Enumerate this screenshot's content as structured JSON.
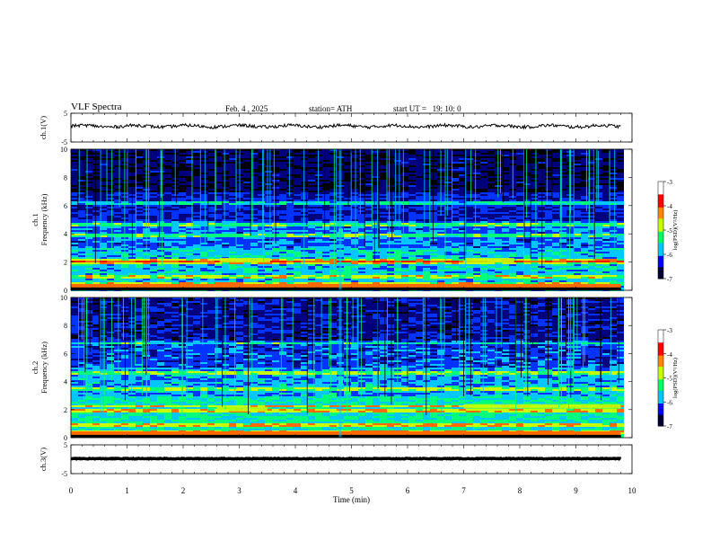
{
  "header": {
    "title": "VLF Spectra",
    "date": "Feb. 4 , 2025",
    "station": "station= ATH",
    "start_ut": "start UT =   19: 10: 0"
  },
  "colors": {
    "spectrogram_ramp": [
      "#000000",
      "#00007f",
      "#0033ff",
      "#00c8ff",
      "#00ff7a",
      "#c8ff00",
      "#ff6a00",
      "#ff0000",
      "#ffffff"
    ]
  },
  "chart_data": [
    {
      "type": "line",
      "name": "ch1-waveform",
      "ylabel": "ch.1(V)",
      "ylim": [
        -5,
        5
      ],
      "yticks": [
        "5",
        "-5"
      ],
      "x_range_min": [
        0,
        9.8
      ],
      "approx_level_v": 0.5,
      "grid": false
    },
    {
      "type": "heatmap",
      "name": "ch1-spectrogram",
      "ylabel": "ch.1\nFrequency (kHz)",
      "ylim": [
        0,
        10
      ],
      "yticks": [
        "0",
        "2",
        "4",
        "6",
        "8",
        "10"
      ],
      "data_x_range_min": [
        0,
        9.8
      ],
      "bands_khz": [
        0.5,
        1.0,
        2.0,
        2.2,
        4.0,
        4.7,
        6.2
      ],
      "strong_segments": [
        {
          "x": [
            2.65,
            3.55
          ],
          "f_khz": 2.1
        },
        {
          "x": [
            7.0,
            7.9
          ],
          "f_khz": 2.1
        }
      ],
      "burst": {
        "x": 4.8,
        "f_khz": 4.0
      },
      "colorbar": {
        "label": "log(PSD)(V²/Hz)",
        "range": [
          -7,
          -3
        ],
        "ticks": [
          "-3",
          "-4",
          "-5",
          "-6",
          "-7"
        ]
      }
    },
    {
      "type": "heatmap",
      "name": "ch2-spectrogram",
      "ylabel": "ch.2\nFrequency (kHz)",
      "ylim": [
        0,
        10
      ],
      "yticks": [
        "0",
        "2",
        "4",
        "6",
        "8",
        "10"
      ],
      "data_x_range_min": [
        0,
        9.8
      ],
      "bands_khz": [
        0.5,
        1.0,
        2.0,
        2.3,
        3.5,
        4.7,
        6.8
      ],
      "strong_segments": [
        {
          "x": [
            2.6,
            3.5
          ],
          "f_khz": 2.0
        },
        {
          "x": [
            7.0,
            9.8
          ],
          "f_khz": 2.2
        }
      ],
      "burst": {
        "x": 4.8,
        "f_khz": 4.0
      },
      "colorbar": {
        "label": "log(PSD)(V²/Hz)",
        "range": [
          -7,
          -3
        ],
        "ticks": [
          "-3",
          "-4",
          "-5",
          "-6",
          "-7"
        ]
      }
    },
    {
      "type": "line",
      "name": "ch3-waveform",
      "ylabel": "ch.3(V)",
      "ylim": [
        -5,
        5
      ],
      "yticks": [
        "5",
        "-5"
      ],
      "x_range_min": [
        0,
        9.8
      ],
      "approx_level_v": 0.2,
      "grid": false
    }
  ],
  "xaxis": {
    "label": "Time (min)",
    "range": [
      0,
      10
    ],
    "ticks": [
      "0",
      "1",
      "2",
      "3",
      "4",
      "5",
      "6",
      "7",
      "8",
      "9",
      "10"
    ]
  }
}
